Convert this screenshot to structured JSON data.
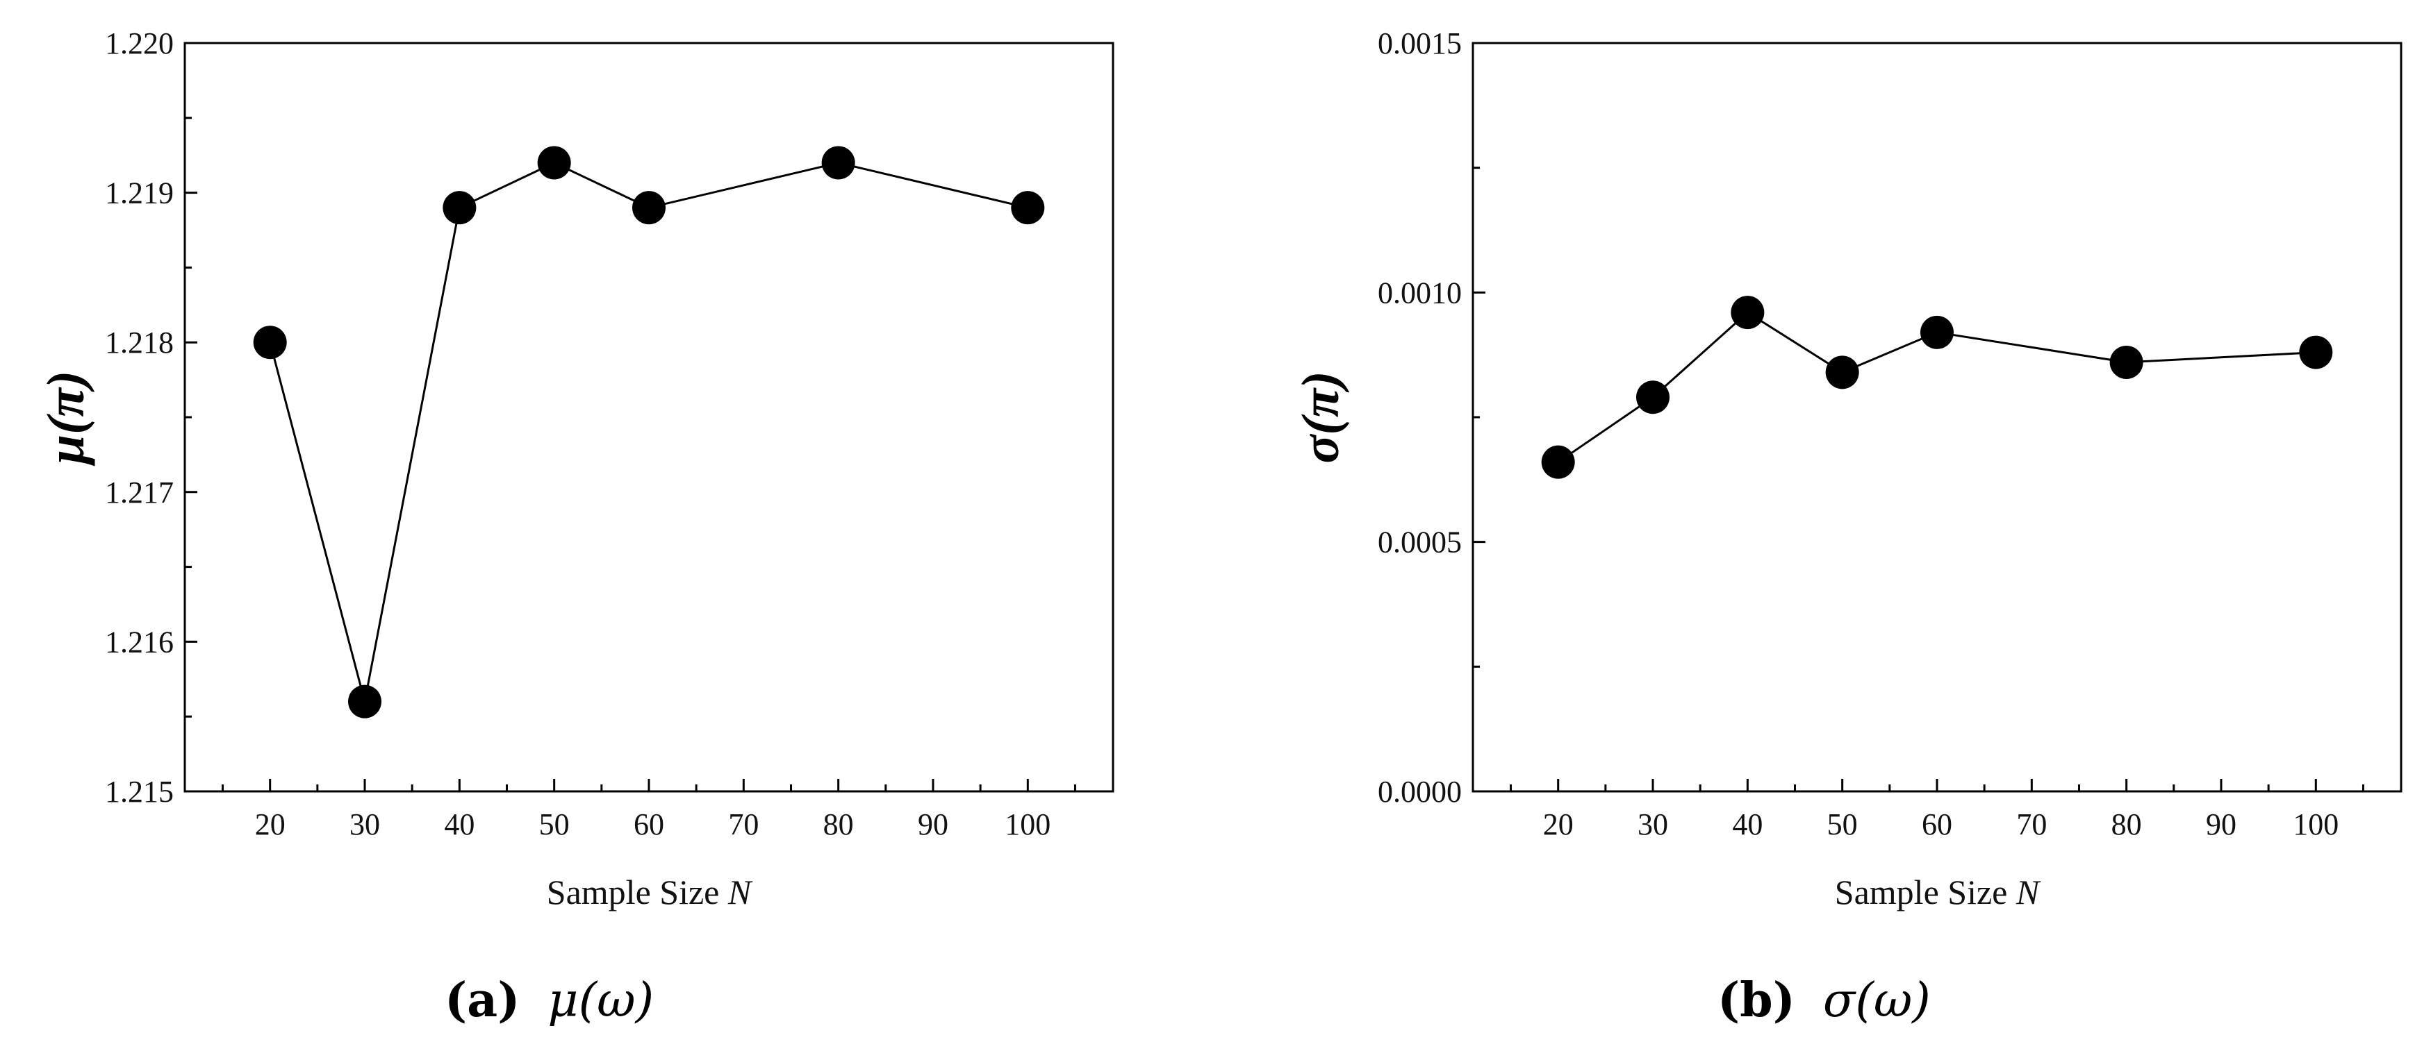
{
  "chart_data": [
    {
      "type": "line",
      "panel_label": "(a)",
      "caption": "μ(ω)",
      "xlabel": "Sample Size",
      "xlabel_var": "N",
      "ylabel": "μ(π)",
      "x_ticks": [
        "20",
        "30",
        "40",
        "50",
        "60",
        "70",
        "80",
        "90",
        "100"
      ],
      "y_ticks": [
        "1.215",
        "1.216",
        "1.217",
        "1.218",
        "1.219",
        "1.220"
      ],
      "xlim": [
        11,
        109
      ],
      "ylim": [
        1.215,
        1.22
      ],
      "series": [
        {
          "x": [
            20,
            30,
            40,
            50,
            60,
            80,
            100
          ],
          "y": [
            1.218,
            1.2156,
            1.2189,
            1.2192,
            1.2189,
            1.2192,
            1.2189
          ]
        }
      ],
      "marker_color": "#000000",
      "line_color": "#000000"
    },
    {
      "type": "line",
      "panel_label": "(b)",
      "caption": "σ(ω)",
      "xlabel": "Sample Size",
      "xlabel_var": "N",
      "ylabel": "σ(π)",
      "x_ticks": [
        "20",
        "30",
        "40",
        "50",
        "60",
        "70",
        "80",
        "90",
        "100"
      ],
      "y_ticks": [
        "0.0000",
        "0.0005",
        "0.0010",
        "0.0015"
      ],
      "xlim": [
        11,
        109
      ],
      "ylim": [
        0,
        0.0015
      ],
      "series": [
        {
          "x": [
            20,
            30,
            40,
            50,
            60,
            80,
            100
          ],
          "y": [
            0.00066,
            0.00079,
            0.00096,
            0.00084,
            0.00092,
            0.00086,
            0.00088
          ]
        }
      ],
      "marker_color": "#000000",
      "line_color": "#000000"
    }
  ]
}
